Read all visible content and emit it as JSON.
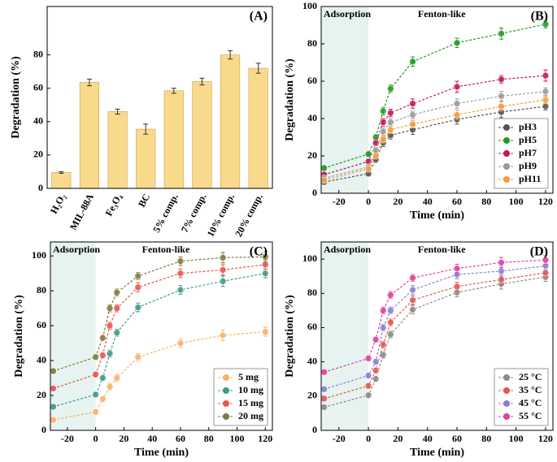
{
  "chart_data": [
    {
      "type": "bar",
      "panel_label": "(A)",
      "y_label": "Degradation (%)",
      "categories": [
        "H₂O₂",
        "MIL-88A",
        "Fe₃O₄",
        "BC",
        "5% comp.",
        "7% comp.",
        "10% comp.",
        "20% comp."
      ],
      "values": [
        9.5,
        63.5,
        46,
        35.5,
        58.5,
        64,
        80,
        72
      ],
      "errors": [
        0.5,
        2,
        1.5,
        3,
        1.5,
        2,
        2.5,
        3
      ],
      "color": "#f9d98c",
      "ylim": [
        0,
        109
      ],
      "yticks": [
        0,
        20,
        40,
        60,
        80
      ]
    },
    {
      "type": "line",
      "panel_label": "(B)",
      "y_label": "Degradation (%)",
      "x_label": "Time (min)",
      "annotations": [
        "Adsorption",
        "Fenton-like"
      ],
      "shade_x": [
        -32,
        0
      ],
      "legend": "lower right",
      "x": [
        -30,
        0,
        5,
        10,
        15,
        30,
        60,
        90,
        120
      ],
      "series": [
        {
          "name": "pH3",
          "color": "#555555",
          "values": [
            6,
            10.5,
            18,
            27,
            31,
            34,
            39.5,
            43.5,
            46.5
          ],
          "errors": [
            1,
            1,
            1.5,
            2,
            2,
            2.5,
            2.5,
            3,
            2
          ]
        },
        {
          "name": "pH5",
          "color": "#229922",
          "values": [
            13.5,
            21,
            30,
            44,
            56,
            70.5,
            80.5,
            85.5,
            90.5
          ],
          "errors": [
            1,
            1,
            1.5,
            2,
            2,
            2.5,
            2.5,
            3,
            2
          ]
        },
        {
          "name": "pH7",
          "color": "#c2185b",
          "values": [
            10,
            17,
            27,
            38,
            43,
            48,
            57,
            61,
            63
          ],
          "errors": [
            1,
            1,
            1.5,
            2,
            2,
            2.5,
            3,
            2,
            3
          ]
        },
        {
          "name": "pH9",
          "color": "#9a9a9a",
          "values": [
            8,
            14,
            23,
            33,
            38,
            42,
            48,
            52,
            54.5
          ],
          "errors": [
            1,
            1,
            1.5,
            2,
            2,
            2,
            2.5,
            2.5,
            2
          ]
        },
        {
          "name": "pH11",
          "color": "#f39c3c",
          "values": [
            7,
            13,
            20,
            29,
            34,
            37,
            42,
            46.5,
            50
          ],
          "errors": [
            1,
            1,
            1.5,
            2,
            2,
            2,
            2.5,
            2.5,
            2
          ]
        }
      ],
      "xlim": [
        -32,
        125
      ],
      "xticks": [
        -20,
        0,
        20,
        40,
        60,
        80,
        100,
        120
      ],
      "ylim": [
        0,
        100
      ],
      "yticks": [
        0,
        20,
        40,
        60,
        80,
        100
      ]
    },
    {
      "type": "line",
      "panel_label": "(C)",
      "y_label": "Degradation (%)",
      "x_label": "Time (min)",
      "annotations": [
        "Adsorption",
        "Fenton-like"
      ],
      "shade_x": [
        -32,
        0
      ],
      "legend": "lower right",
      "x": [
        -30,
        0,
        5,
        10,
        15,
        30,
        60,
        90,
        120
      ],
      "series": [
        {
          "name": "5 mg",
          "color": "#f7b267",
          "values": [
            6,
            10.5,
            18,
            25,
            30,
            42,
            50,
            54.5,
            56.5
          ],
          "errors": [
            1,
            1,
            1.5,
            2,
            2,
            2,
            2.5,
            3,
            2.5
          ]
        },
        {
          "name": "10 mg",
          "color": "#3f9a8a",
          "values": [
            13.5,
            20.5,
            30,
            44,
            56,
            70.5,
            80.5,
            85.5,
            90
          ],
          "errors": [
            1,
            1,
            1.5,
            2,
            2,
            2.5,
            2.5,
            3,
            2.5
          ]
        },
        {
          "name": "15 mg",
          "color": "#e8554e",
          "values": [
            24,
            32,
            43,
            60,
            70,
            82,
            90,
            92,
            95
          ],
          "errors": [
            1,
            1,
            1.5,
            2,
            2,
            2.5,
            2.5,
            3,
            2.5
          ]
        },
        {
          "name": "20 mg",
          "color": "#7f7a3a",
          "values": [
            34,
            42,
            53,
            70,
            79,
            88.5,
            97,
            99,
            99.5
          ],
          "errors": [
            1,
            1,
            1.5,
            2,
            2,
            2,
            2.5,
            3,
            3
          ]
        }
      ],
      "xlim": [
        -32,
        125
      ],
      "xticks": [
        -20,
        0,
        20,
        40,
        60,
        80,
        100,
        120
      ],
      "ylim": [
        0,
        108
      ],
      "yticks": [
        0,
        20,
        40,
        60,
        80,
        100
      ]
    },
    {
      "type": "line",
      "panel_label": "(D)",
      "y_label": "Degradation (%)",
      "x_label": "Time (min)",
      "annotations": [
        "Adsorption",
        "Fenton-like"
      ],
      "shade_x": [
        -32,
        0
      ],
      "legend": "lower right",
      "x": [
        -30,
        0,
        5,
        10,
        15,
        30,
        60,
        90,
        120
      ],
      "series": [
        {
          "name": "25 °C",
          "color": "#8a8a8a",
          "values": [
            13.5,
            20.5,
            30,
            44,
            56,
            70.5,
            80.5,
            85.5,
            89.5
          ],
          "errors": [
            1,
            1,
            1.5,
            2,
            2,
            2.5,
            2.5,
            3,
            2.5
          ]
        },
        {
          "name": "35 °C",
          "color": "#e8554e",
          "values": [
            18.5,
            26,
            35,
            50,
            63,
            76,
            84,
            88,
            92
          ],
          "errors": [
            1,
            1,
            1.5,
            2,
            2,
            2.5,
            2.5,
            3,
            2.5
          ]
        },
        {
          "name": "45 °C",
          "color": "#8a7fd6",
          "values": [
            24,
            32,
            40,
            60,
            70,
            82,
            91,
            93,
            96
          ],
          "errors": [
            1,
            1,
            1.5,
            2,
            2,
            2.5,
            2.5,
            3,
            2.5
          ]
        },
        {
          "name": "55 °C",
          "color": "#e040a0",
          "values": [
            34,
            42,
            53,
            70,
            79,
            89,
            94.5,
            98,
            99.5
          ],
          "errors": [
            1,
            1,
            1.5,
            2,
            2,
            2,
            2.5,
            3,
            2.5
          ]
        }
      ],
      "xlim": [
        -32,
        125
      ],
      "xticks": [
        -20,
        0,
        20,
        40,
        60,
        80,
        100,
        120
      ],
      "ylim": [
        0,
        110
      ],
      "yticks": [
        0,
        20,
        40,
        60,
        80,
        100
      ]
    }
  ]
}
